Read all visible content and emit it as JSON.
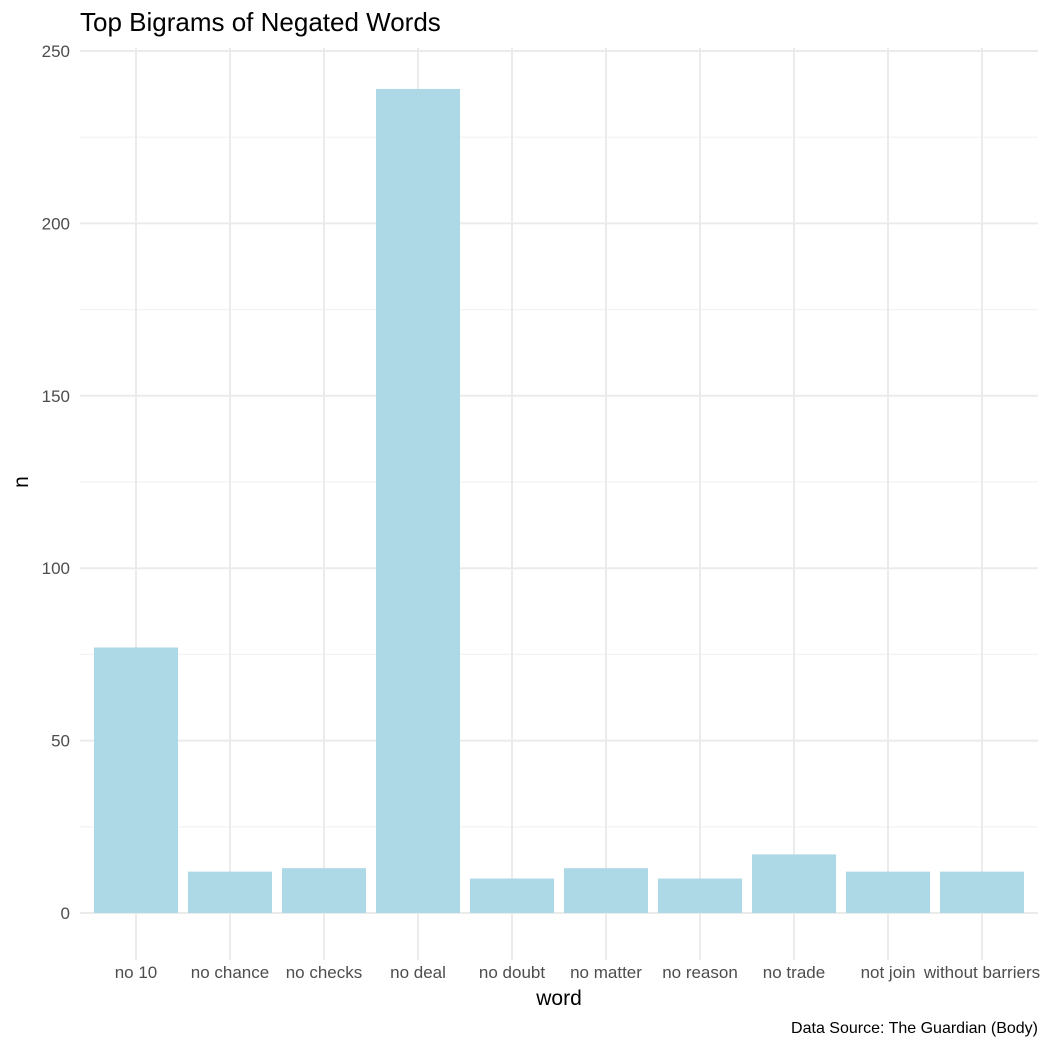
{
  "chart_data": {
    "type": "bar",
    "title": "Top Bigrams of Negated Words",
    "xlabel": "word",
    "ylabel": "n",
    "caption": "Data Source: The Guardian (Body)",
    "categories": [
      "no 10",
      "no chance",
      "no checks",
      "no deal",
      "no doubt",
      "no matter",
      "no reason",
      "no trade",
      "not join",
      "without barriers"
    ],
    "values": [
      77,
      12,
      13,
      239,
      10,
      13,
      10,
      17,
      12,
      12
    ],
    "ylim": [
      0,
      250
    ],
    "yticks": [
      0,
      50,
      100,
      150,
      200,
      250
    ],
    "grid": true,
    "bar_color": "#add8e6"
  }
}
